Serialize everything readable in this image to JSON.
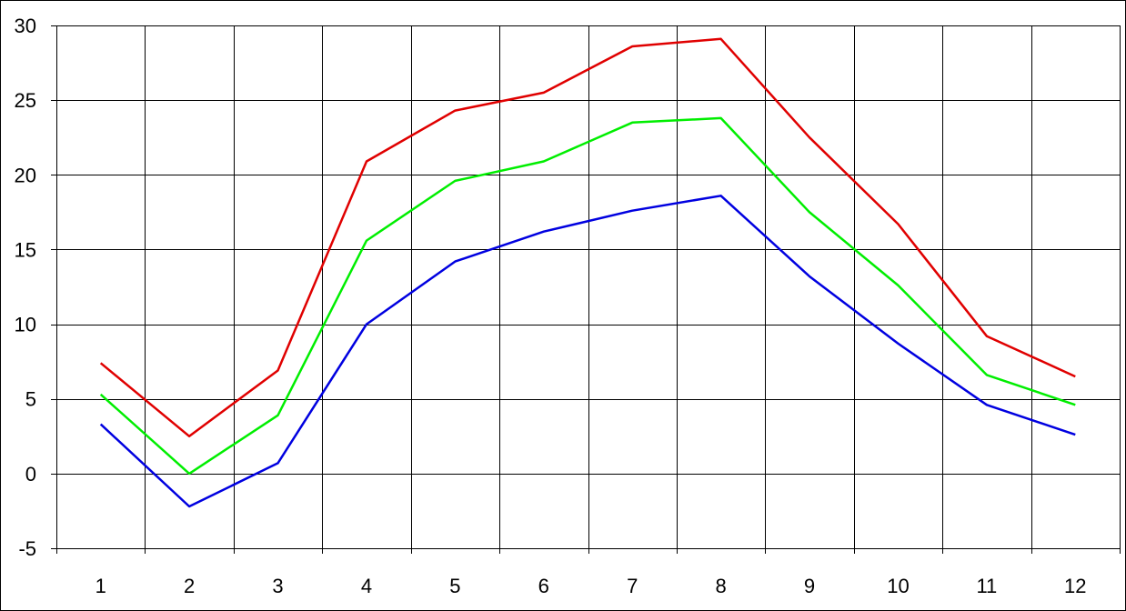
{
  "chart_data": {
    "type": "line",
    "title": "",
    "xlabel": "",
    "ylabel": "",
    "categories": [
      "1",
      "2",
      "3",
      "4",
      "5",
      "6",
      "7",
      "8",
      "9",
      "10",
      "11",
      "12"
    ],
    "ylim": [
      -5,
      30
    ],
    "yticks": [
      -5,
      0,
      5,
      10,
      15,
      20,
      25,
      30
    ],
    "grid": true,
    "legend": "none",
    "series": [
      {
        "color": "#e00000",
        "values": [
          7.4,
          2.5,
          6.9,
          20.9,
          24.3,
          25.5,
          28.6,
          29.1,
          22.5,
          16.7,
          9.2,
          6.5
        ]
      },
      {
        "color": "#00ee00",
        "values": [
          5.3,
          0.0,
          3.9,
          15.6,
          19.6,
          20.9,
          23.5,
          23.8,
          17.5,
          12.6,
          6.6,
          4.6
        ]
      },
      {
        "color": "#0000e0",
        "values": [
          3.3,
          -2.2,
          0.7,
          10.0,
          14.2,
          16.2,
          17.6,
          18.6,
          13.2,
          8.7,
          4.6,
          2.6
        ]
      }
    ]
  }
}
